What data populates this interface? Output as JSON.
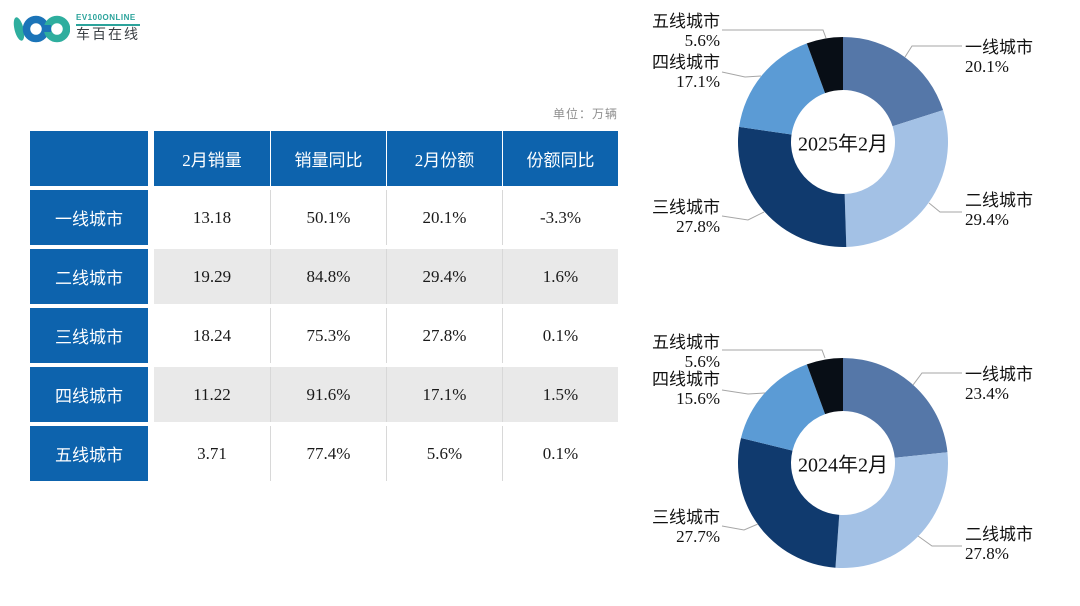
{
  "logo": {
    "brand_en": "EV100ONLINE",
    "brand_cn": "车百在线",
    "mark_blue": "#1b74b8",
    "mark_teal": "#2eae9e"
  },
  "unit_label": "单位：万辆",
  "table": {
    "header_bg": "#0d63ad",
    "alt_row_bg": "#e9e9e9",
    "columns": [
      "2月销量",
      "销量同比",
      "2月份额",
      "份额同比"
    ],
    "rows": [
      {
        "label": "一线城市",
        "values": [
          "13.18",
          "50.1%",
          "20.1%",
          "-3.3%"
        ]
      },
      {
        "label": "二线城市",
        "values": [
          "19.29",
          "84.8%",
          "29.4%",
          "1.6%"
        ]
      },
      {
        "label": "三线城市",
        "values": [
          "18.24",
          "75.3%",
          "27.8%",
          "0.1%"
        ]
      },
      {
        "label": "四线城市",
        "values": [
          "11.22",
          "91.6%",
          "17.1%",
          "1.5%"
        ]
      },
      {
        "label": "五线城市",
        "values": [
          "3.71",
          "77.4%",
          "5.6%",
          "0.1%"
        ]
      }
    ]
  },
  "chart_data": [
    {
      "type": "pie",
      "donut": true,
      "title": "2025年2月",
      "categories": [
        "一线城市",
        "二线城市",
        "三线城市",
        "四线城市",
        "五线城市"
      ],
      "values": [
        20.1,
        29.4,
        27.8,
        17.1,
        5.6
      ],
      "labels": [
        "20.1%",
        "29.4%",
        "27.8%",
        "17.1%",
        "5.6%"
      ],
      "colors": [
        "#5577a8",
        "#a3c1e5",
        "#103a6e",
        "#5b9bd5",
        "#080e16"
      ],
      "legend_position": "outside-callouts"
    },
    {
      "type": "pie",
      "donut": true,
      "title": "2024年2月",
      "categories": [
        "一线城市",
        "二线城市",
        "三线城市",
        "四线城市",
        "五线城市"
      ],
      "values": [
        23.4,
        27.8,
        27.7,
        15.6,
        5.6
      ],
      "labels": [
        "23.4%",
        "27.8%",
        "27.7%",
        "15.6%",
        "5.6%"
      ],
      "colors": [
        "#5577a8",
        "#a3c1e5",
        "#103a6e",
        "#5b9bd5",
        "#080e16"
      ],
      "legend_position": "outside-callouts"
    }
  ]
}
